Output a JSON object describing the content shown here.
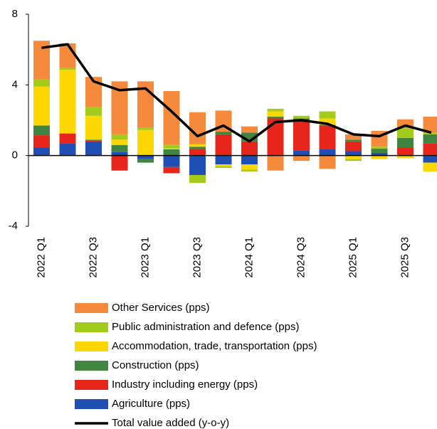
{
  "chart_data": {
    "type": "bar",
    "stacked": true,
    "categories": [
      "2022 Q1",
      null,
      "2022 Q3",
      null,
      "2023 Q1",
      null,
      "2023 Q3",
      null,
      "2024 Q1",
      null,
      "2024 Q3",
      null,
      "2025 Q1",
      null,
      "2025 Q3",
      null
    ],
    "ylim": [
      -4,
      8
    ],
    "yticks": [
      -4,
      0,
      4,
      8
    ],
    "series": [
      {
        "name": "Agriculture (pps)",
        "color": "#1f4fb5",
        "values": [
          0.45,
          0.7,
          0.8,
          0.2,
          -0.2,
          -0.65,
          -1.1,
          -0.5,
          -0.5,
          0.0,
          0.3,
          0.35,
          0.25,
          0.15,
          0.05,
          -0.4
        ]
      },
      {
        "name": "Industry including energy (pps)",
        "color": "#e8251b",
        "values": [
          0.7,
          0.55,
          0.05,
          -0.85,
          0.0,
          -0.35,
          0.35,
          1.2,
          0.8,
          2.1,
          1.7,
          1.35,
          0.55,
          0.0,
          0.4,
          0.7
        ]
      },
      {
        "name": "Construction (pps)",
        "color": "#3f8540",
        "values": [
          0.55,
          0.0,
          0.05,
          0.4,
          -0.2,
          0.35,
          0.15,
          0.15,
          0.5,
          0.1,
          0.1,
          0.05,
          0.1,
          0.25,
          0.55,
          0.5
        ]
      },
      {
        "name": "Accommodation, trade, transportation (pps)",
        "color": "#ffd700",
        "values": [
          2.2,
          3.6,
          1.35,
          0.3,
          1.45,
          0.05,
          0.15,
          -0.1,
          -0.3,
          0.3,
          0.0,
          0.35,
          -0.2,
          -0.2,
          -0.15,
          -0.5
        ]
      },
      {
        "name": "Public administration and defence (pps)",
        "color": "#a3cc1a",
        "values": [
          0.4,
          0.1,
          0.5,
          0.3,
          0.15,
          0.2,
          -0.45,
          -0.1,
          -0.1,
          0.15,
          0.15,
          0.4,
          -0.1,
          0.1,
          0.55,
          0.1
        ]
      },
      {
        "name": "Other Services (pps)",
        "color": "#f58a3c",
        "values": [
          2.2,
          1.4,
          1.7,
          3.0,
          2.6,
          3.05,
          1.8,
          1.2,
          0.35,
          -0.85,
          -0.3,
          -0.75,
          0.3,
          0.9,
          0.5,
          0.9
        ]
      },
      {
        "name": "Total value added (y-o-y)",
        "type": "line",
        "color": "#000000",
        "values": [
          6.1,
          6.3,
          4.2,
          3.7,
          3.8,
          2.5,
          1.1,
          1.7,
          0.8,
          1.9,
          2.0,
          1.8,
          1.2,
          1.1,
          1.7,
          1.3
        ]
      }
    ]
  }
}
